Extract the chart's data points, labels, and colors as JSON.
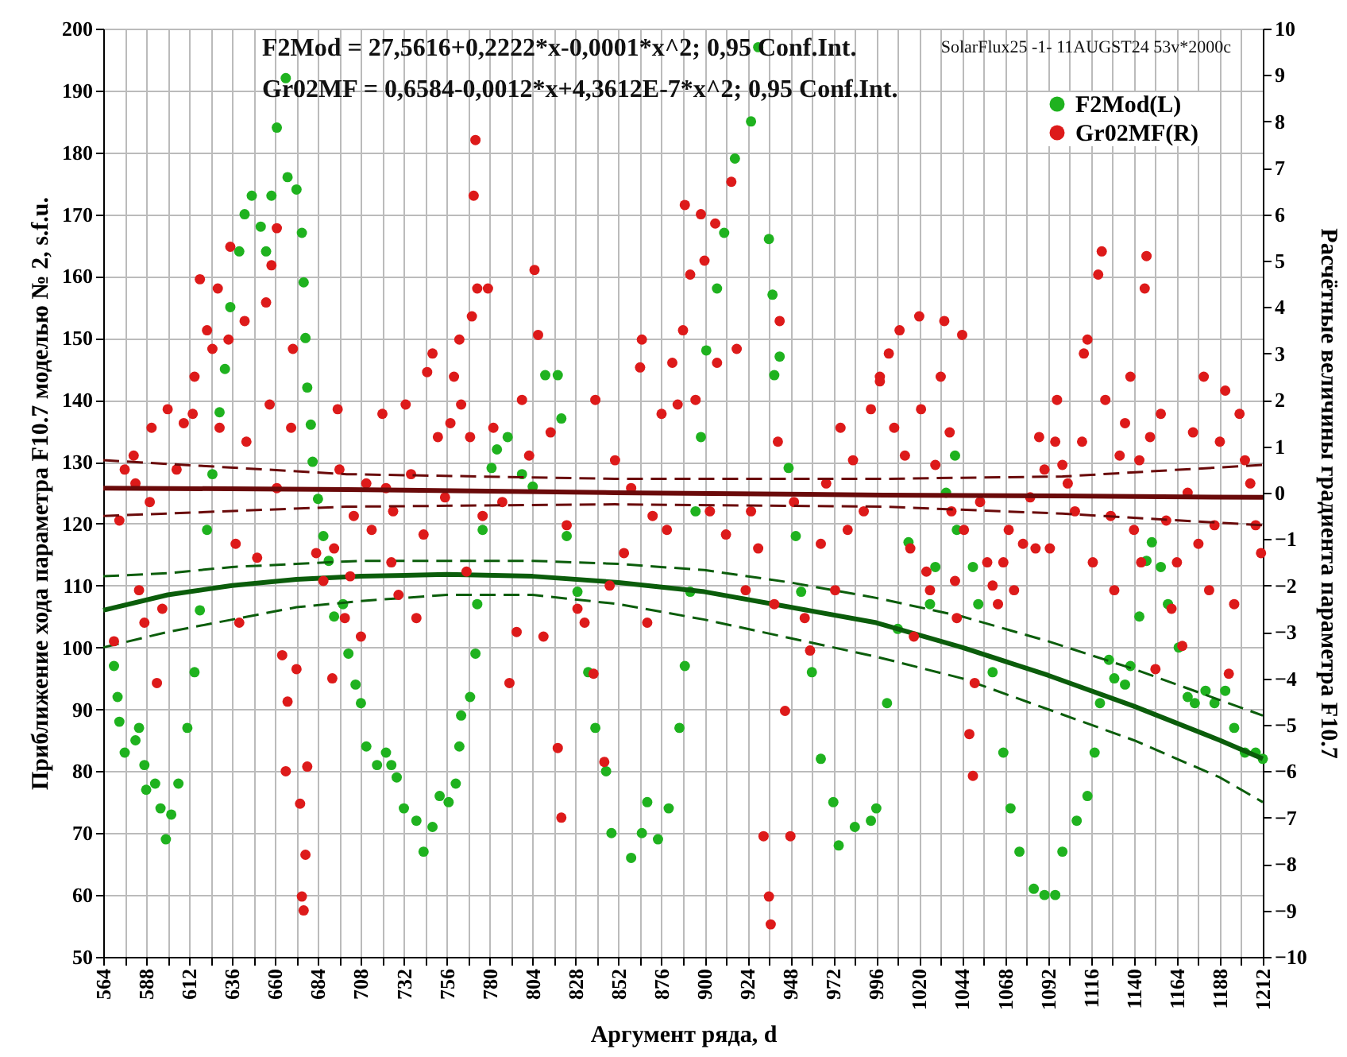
{
  "chart_data": {
    "type": "scatter",
    "xlabel": "Аргумент ряда,  d",
    "ylabel": "Приближение хода параметра F10.7 моделью № 2, s.f.u.",
    "y2label": "Расчётные величины градиента параметра F10.7",
    "annotations": [
      "F2Mod = 27,5616+0,2222*x-0,0001*x^2; 0,95 Conf.Int.",
      "Gr02MF = 0,6584-0,0012*x+4,3612E-7*x^2; 0,95 Conf.Int.",
      "SolarFlux25 -1- 11AUGST24 53v*2000c"
    ],
    "xlim": [
      564,
      1212
    ],
    "xticks": [
      564,
      {
        "value": 576,
        "label": null
      },
      588,
      {
        "value": 600,
        "label": null
      },
      612,
      {
        "value": 624,
        "label": null
      },
      636,
      {
        "value": 648,
        "label": null
      },
      660,
      {
        "value": 672,
        "label": null
      },
      684,
      {
        "value": 696,
        "label": null
      },
      708,
      {
        "value": 720,
        "label": null
      },
      732,
      {
        "value": 744,
        "label": null
      },
      756,
      {
        "value": 768,
        "label": null
      },
      780,
      {
        "value": 792,
        "label": null
      },
      804,
      {
        "value": 816,
        "label": null
      },
      828,
      {
        "value": 840,
        "label": null
      },
      852,
      {
        "value": 864,
        "label": null
      },
      876,
      {
        "value": 888,
        "label": null
      },
      900,
      {
        "value": 912,
        "label": null
      },
      924,
      {
        "value": 936,
        "label": null
      },
      948,
      {
        "value": 960,
        "label": null
      },
      972,
      {
        "value": 984,
        "label": null
      },
      996,
      {
        "value": 1008,
        "label": null
      },
      1020,
      {
        "value": 1032,
        "label": null
      },
      1044,
      {
        "value": 1056,
        "label": null
      },
      1068,
      {
        "value": 1080,
        "label": null
      },
      1092,
      {
        "value": 1104,
        "label": null
      },
      1116,
      {
        "value": 1128,
        "label": null
      },
      1140,
      {
        "value": 1152,
        "label": null
      },
      1164,
      {
        "value": 1176,
        "label": null
      },
      1188,
      {
        "value": 1200,
        "label": null
      },
      1212
    ],
    "ylim": [
      50,
      200
    ],
    "yticks": [
      50,
      60,
      70,
      80,
      90,
      100,
      110,
      120,
      130,
      140,
      150,
      160,
      170,
      180,
      190,
      200
    ],
    "y2lim": [
      -10,
      10
    ],
    "y2ticks": [
      -10,
      -9,
      -8,
      -7,
      -6,
      -5,
      -4,
      -3,
      -2,
      -1,
      0,
      1,
      2,
      3,
      4,
      5,
      6,
      7,
      8,
      9,
      10
    ],
    "grid": true,
    "legend": "top right",
    "series": [
      {
        "name": "F2Mod(L)",
        "color": "#1fb21f",
        "x": [
          570,
          572,
          573,
          576,
          582,
          584,
          587,
          588,
          593,
          596,
          599,
          602,
          606,
          611,
          615,
          618,
          622,
          625,
          629,
          632,
          635,
          640,
          643,
          647,
          652,
          655,
          658,
          661,
          666,
          667,
          672,
          675,
          676,
          677,
          678,
          680,
          681,
          684,
          687,
          690,
          693,
          698,
          701,
          705,
          708,
          711,
          717,
          722,
          725,
          728,
          732,
          739,
          743,
          748,
          752,
          757,
          761,
          763,
          764,
          769,
          772,
          773,
          776,
          781,
          784,
          790,
          798,
          804,
          811,
          818,
          820,
          823,
          829,
          835,
          839,
          845,
          848,
          859,
          865,
          868,
          874,
          880,
          886,
          889,
          892,
          895,
          898,
          901,
          907,
          911,
          917,
          926,
          930,
          936,
          938,
          939,
          942,
          947,
          951,
          954,
          960,
          965,
          972,
          975,
          984,
          993,
          996,
          1002,
          1008,
          1014,
          1026,
          1029,
          1035,
          1040,
          1041,
          1050,
          1053,
          1061,
          1067,
          1071,
          1076,
          1084,
          1090,
          1096,
          1100,
          1108,
          1114,
          1118,
          1121,
          1126,
          1129,
          1135,
          1138,
          1143,
          1147,
          1150,
          1155,
          1159,
          1165,
          1170,
          1174,
          1180,
          1185,
          1191,
          1196,
          1202,
          1208,
          1212
        ],
        "values": [
          97,
          92,
          88,
          83,
          85,
          87,
          81,
          77,
          78,
          74,
          69,
          73,
          78,
          87,
          96,
          106,
          119,
          128,
          138,
          145,
          155,
          164,
          170,
          173,
          168,
          164,
          173,
          184,
          192,
          176,
          174,
          167,
          159,
          150,
          142,
          136,
          130,
          124,
          118,
          114,
          105,
          107,
          99,
          94,
          91,
          84,
          81,
          83,
          81,
          79,
          74,
          72,
          67,
          71,
          76,
          75,
          78,
          84,
          89,
          92,
          99,
          107,
          119,
          129,
          132,
          134,
          128,
          126,
          144,
          144,
          137,
          118,
          109,
          96,
          87,
          80,
          70,
          66,
          70,
          75,
          69,
          74,
          87,
          97,
          109,
          122,
          134,
          148,
          158,
          167,
          179,
          185,
          197,
          166,
          157,
          144,
          147,
          129,
          118,
          109,
          96,
          82,
          75,
          68,
          71,
          72,
          74,
          91,
          103,
          117,
          107,
          113,
          125,
          131,
          119,
          113,
          107,
          96,
          83,
          74,
          67,
          61,
          60,
          60,
          67,
          72,
          76,
          83,
          91,
          98,
          95,
          94,
          97,
          105,
          114,
          117,
          113,
          107,
          100,
          92,
          91,
          93,
          91,
          93,
          87,
          83,
          83,
          82
        ]
      },
      {
        "name": "Gr02MF(R)",
        "axis": "y2",
        "color": "#dd1a1a",
        "x": [
          570,
          573,
          576,
          581,
          582,
          584,
          587,
          590,
          591,
          594,
          597,
          600,
          605,
          609,
          614,
          615,
          618,
          622,
          625,
          628,
          629,
          634,
          635,
          638,
          640,
          643,
          644,
          650,
          655,
          657,
          658,
          661,
          661,
          664,
          666,
          667,
          669,
          670,
          672,
          674,
          675,
          676,
          677,
          678,
          683,
          687,
          692,
          693,
          695,
          696,
          699,
          702,
          704,
          708,
          711,
          714,
          720,
          722,
          725,
          726,
          729,
          733,
          736,
          739,
          743,
          745,
          748,
          751,
          755,
          758,
          760,
          763,
          764,
          767,
          769,
          770,
          771,
          772,
          773,
          776,
          779,
          782,
          787,
          791,
          795,
          798,
          802,
          805,
          807,
          810,
          814,
          818,
          820,
          823,
          829,
          833,
          838,
          839,
          844,
          847,
          850,
          855,
          859,
          864,
          865,
          868,
          871,
          876,
          879,
          882,
          885,
          888,
          889,
          892,
          895,
          898,
          900,
          903,
          906,
          907,
          912,
          915,
          918,
          923,
          926,
          930,
          933,
          936,
          937,
          939,
          941,
          942,
          945,
          948,
          950,
          956,
          959,
          965,
          968,
          973,
          976,
          980,
          983,
          989,
          993,
          998,
          998,
          1003,
          1006,
          1009,
          1012,
          1015,
          1017,
          1020,
          1021,
          1024,
          1026,
          1029,
          1032,
          1034,
          1037,
          1038,
          1040,
          1041,
          1044,
          1045,
          1048,
          1050,
          1051,
          1054,
          1058,
          1061,
          1064,
          1067,
          1070,
          1073,
          1078,
          1082,
          1085,
          1087,
          1090,
          1093,
          1096,
          1097,
          1100,
          1103,
          1107,
          1111,
          1112,
          1114,
          1117,
          1120,
          1122,
          1124,
          1127,
          1129,
          1132,
          1135,
          1138,
          1140,
          1143,
          1144,
          1146,
          1147,
          1149,
          1152,
          1155,
          1158,
          1161,
          1164,
          1167,
          1170,
          1173,
          1176,
          1179,
          1182,
          1185,
          1188,
          1191,
          1193,
          1196,
          1199,
          1202,
          1205,
          1208,
          1211
        ],
        "values": [
          -3.2,
          -0.6,
          0.5,
          0.8,
          0.2,
          -2.1,
          -2.8,
          -0.2,
          1.4,
          -4.1,
          -2.5,
          1.8,
          0.5,
          1.5,
          1.7,
          2.5,
          4.6,
          3.5,
          3.1,
          4.4,
          1.4,
          3.3,
          5.3,
          -1.1,
          -2.8,
          3.7,
          1.1,
          -1.4,
          4.1,
          1.9,
          4.9,
          5.7,
          0.1,
          -3.5,
          -6.0,
          -4.5,
          1.4,
          3.1,
          -3.8,
          -6.7,
          -8.7,
          -9.0,
          -7.8,
          -5.9,
          -1.3,
          -1.9,
          -4.0,
          -1.2,
          1.8,
          0.5,
          -2.7,
          -1.8,
          -0.5,
          -3.1,
          0.2,
          -0.8,
          1.7,
          0.1,
          -1.5,
          -0.4,
          -2.2,
          1.9,
          0.4,
          -2.7,
          -0.9,
          2.6,
          3.0,
          1.2,
          -0.1,
          1.5,
          2.5,
          3.3,
          1.9,
          -1.7,
          1.2,
          3.8,
          6.4,
          7.6,
          4.4,
          -0.5,
          4.4,
          1.4,
          -0.2,
          -4.1,
          -3.0,
          2.0,
          0.8,
          4.8,
          3.4,
          -3.1,
          1.3,
          -5.5,
          -7.0,
          -0.7,
          -2.5,
          -2.8,
          -3.9,
          2.0,
          -5.8,
          -2.0,
          0.7,
          -1.3,
          0.1,
          2.7,
          3.3,
          -2.8,
          -0.5,
          1.7,
          -0.8,
          2.8,
          1.9,
          3.5,
          6.2,
          4.7,
          2.0,
          6.0,
          5.0,
          -0.4,
          5.8,
          2.8,
          -0.9,
          6.7,
          3.1,
          -2.1,
          -0.4,
          -1.2,
          -7.4,
          -8.7,
          -9.3,
          -2.4,
          1.1,
          3.7,
          -4.7,
          -7.4,
          -0.2,
          -2.7,
          -3.4,
          -1.1,
          0.2,
          -2.1,
          1.4,
          -0.8,
          0.7,
          -0.4,
          1.8,
          2.5,
          2.4,
          3.0,
          1.4,
          3.5,
          0.8,
          -1.2,
          -3.1,
          3.8,
          1.8,
          -1.7,
          -2.1,
          0.6,
          2.5,
          3.7,
          1.3,
          -0.4,
          -1.9,
          -2.7,
          3.4,
          -0.8,
          -5.2,
          -6.1,
          -4.1,
          -0.2,
          -1.5,
          -2.0,
          -2.4,
          -1.5,
          -0.8,
          -2.1,
          -1.1,
          -0.1,
          -1.2,
          1.2,
          0.5,
          -1.2,
          1.1,
          2.0,
          0.6,
          0.2,
          -0.4,
          1.1,
          3.0,
          3.3,
          -1.5,
          4.7,
          5.2,
          2.0,
          -0.5,
          -2.1,
          0.8,
          1.5,
          2.5,
          -0.8,
          0.7,
          -1.5,
          4.4,
          5.1,
          1.2,
          -3.8,
          1.7,
          -0.6,
          -2.5,
          -1.5,
          -3.3,
          0.0,
          1.3,
          -1.1,
          2.5,
          -2.1,
          -0.7,
          1.1,
          2.2,
          -3.9,
          -2.4,
          1.7,
          0.7,
          0.2,
          -0.7,
          -1.3
        ]
      },
      {
        "type": "line",
        "line_style": "solid",
        "color": "#0b5d0b",
        "x": [
          564,
          600,
          636,
          672,
          708,
          756,
          804,
          852,
          900,
          948,
          996,
          1044,
          1092,
          1140,
          1188,
          1212
        ],
        "values": [
          106,
          108.5,
          110,
          111,
          111.5,
          111.8,
          111.5,
          110.5,
          109,
          106.5,
          104,
          100,
          95.5,
          90.5,
          85,
          82
        ]
      },
      {
        "type": "line",
        "line_style": "dashed",
        "color": "#0b5d0b",
        "x": [
          564,
          600,
          636,
          672,
          708,
          756,
          804,
          852,
          900,
          948,
          996,
          1044,
          1092,
          1140,
          1188,
          1212
        ],
        "values": [
          100,
          102.5,
          104.5,
          106.5,
          107.5,
          108.5,
          108.5,
          107,
          104.5,
          101.5,
          98.5,
          95,
          90,
          85,
          79,
          75
        ]
      },
      {
        "type": "line",
        "line_style": "dashed",
        "color": "#0b5d0b",
        "x": [
          564,
          600,
          636,
          672,
          708,
          756,
          804,
          852,
          900,
          948,
          996,
          1044,
          1092,
          1140,
          1188,
          1212
        ],
        "values": [
          111.5,
          112,
          113,
          113.5,
          114,
          114,
          114,
          113.5,
          112.5,
          110.5,
          108,
          105,
          101,
          96.5,
          91.5,
          89
        ]
      },
      {
        "type": "line",
        "line_style": "solid",
        "axis": "y2",
        "color": "#6a0a0a",
        "x": [
          564,
          700,
          850,
          1000,
          1100,
          1212
        ],
        "values": [
          0.1,
          0.07,
          0.0,
          -0.05,
          -0.07,
          -0.1
        ]
      },
      {
        "type": "line",
        "line_style": "dashed",
        "axis": "y2",
        "color": "#6a0a0a",
        "x": [
          564,
          700,
          850,
          1000,
          1100,
          1212
        ],
        "values": [
          -0.5,
          -0.3,
          -0.25,
          -0.3,
          -0.45,
          -0.7
        ]
      },
      {
        "type": "line",
        "line_style": "dashed",
        "axis": "y2",
        "color": "#6a0a0a",
        "x": [
          564,
          700,
          850,
          1000,
          1100,
          1212
        ],
        "values": [
          0.7,
          0.4,
          0.3,
          0.3,
          0.35,
          0.6
        ]
      }
    ]
  }
}
